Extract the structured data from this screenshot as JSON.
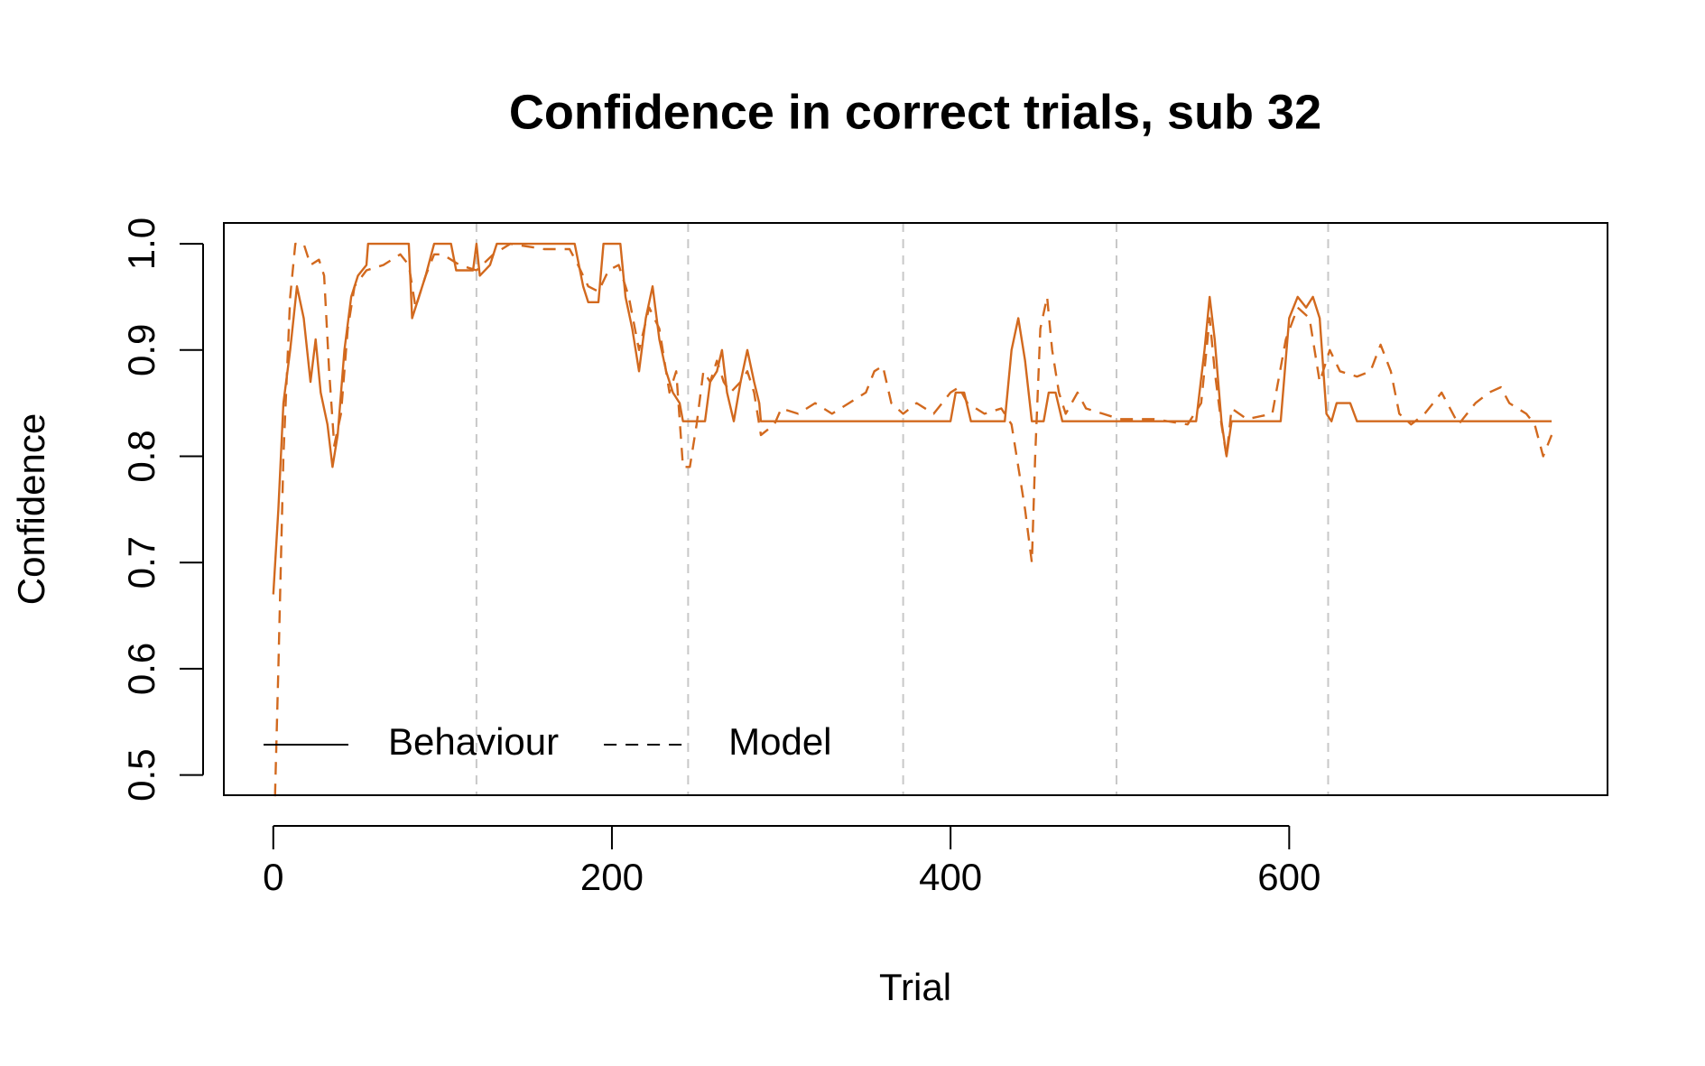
{
  "chart_data": {
    "type": "line",
    "title": "Confidence in correct trials, sub 32",
    "xlabel": "Trial",
    "ylabel": "Confidence",
    "xlim": [
      -29.2,
      788
    ],
    "ylim": [
      0.481,
      1.0196
    ],
    "xticks": [
      0,
      200,
      400,
      600
    ],
    "yticks": [
      0.5,
      0.6,
      0.7,
      0.8,
      0.9,
      {
        "value": 1,
        "label": "1.0"
      }
    ],
    "vlines": [
      120,
      245,
      372,
      498,
      623
    ],
    "legend": "bottom-left",
    "series": [
      {
        "name": "Behaviour",
        "color": "#d2691e",
        "linestyle": "solid",
        "x": [
          0,
          3,
          6,
          10,
          14,
          18,
          22,
          25,
          28,
          32,
          35,
          38,
          42,
          46,
          50,
          55,
          56,
          80,
          82,
          86,
          90,
          95,
          105,
          108,
          118,
          120,
          122,
          128,
          132,
          178,
          183,
          186,
          192,
          195,
          205,
          208,
          212,
          216,
          220,
          224,
          228,
          232,
          236,
          240,
          242,
          255,
          258,
          262,
          265,
          268,
          272,
          276,
          280,
          284,
          287,
          288,
          400,
          403,
          408,
          412,
          432,
          436,
          440,
          444,
          448,
          455,
          458,
          462,
          466,
          545,
          550,
          553,
          556,
          560,
          563,
          566,
          595,
          600,
          605,
          610,
          614,
          618,
          622,
          625,
          628,
          636,
          640,
          755
        ],
        "values": [
          0.67,
          0.75,
          0.85,
          0.9,
          0.96,
          0.93,
          0.87,
          0.91,
          0.86,
          0.83,
          0.79,
          0.82,
          0.9,
          0.95,
          0.97,
          0.98,
          1.0,
          1.0,
          0.93,
          0.95,
          0.97,
          1.0,
          1.0,
          0.975,
          0.975,
          1.0,
          0.97,
          0.98,
          1.0,
          1.0,
          0.96,
          0.945,
          0.945,
          1.0,
          1.0,
          0.95,
          0.92,
          0.88,
          0.93,
          0.96,
          0.91,
          0.88,
          0.86,
          0.85,
          0.833,
          0.833,
          0.87,
          0.88,
          0.9,
          0.86,
          0.833,
          0.87,
          0.9,
          0.87,
          0.85,
          0.833,
          0.833,
          0.86,
          0.86,
          0.833,
          0.833,
          0.9,
          0.93,
          0.89,
          0.833,
          0.833,
          0.86,
          0.86,
          0.833,
          0.833,
          0.9,
          0.95,
          0.91,
          0.833,
          0.8,
          0.833,
          0.833,
          0.93,
          0.95,
          0.94,
          0.95,
          0.93,
          0.84,
          0.833,
          0.85,
          0.85,
          0.833,
          0.833
        ]
      },
      {
        "name": "Model",
        "color": "#d2691e",
        "linestyle": "dashed",
        "x": [
          1,
          3,
          6,
          10,
          13,
          18,
          22,
          27,
          30,
          33,
          36,
          40,
          44,
          48,
          55,
          65,
          75,
          80,
          84,
          90,
          95,
          100,
          110,
          120,
          130,
          140,
          160,
          175,
          180,
          186,
          192,
          198,
          204,
          210,
          216,
          222,
          228,
          234,
          238,
          242,
          246,
          250,
          254,
          258,
          262,
          266,
          270,
          276,
          280,
          284,
          288,
          292,
          296,
          300,
          310,
          320,
          330,
          340,
          350,
          355,
          360,
          365,
          372,
          380,
          390,
          400,
          405,
          410,
          420,
          430,
          436,
          440,
          444,
          448,
          450,
          453,
          457,
          460,
          464,
          468,
          475,
          480,
          490,
          500,
          520,
          540,
          548,
          553,
          556,
          560,
          563,
          566,
          575,
          590,
          598,
          605,
          612,
          618,
          624,
          630,
          640,
          648,
          654,
          660,
          665,
          672,
          680,
          690,
          700,
          710,
          718,
          725,
          730,
          740,
          745,
          750,
          755
        ],
        "values": [
          0.48,
          0.6,
          0.8,
          0.95,
          1.0,
          1.0,
          0.98,
          0.985,
          0.97,
          0.88,
          0.81,
          0.84,
          0.92,
          0.96,
          0.975,
          0.98,
          0.99,
          0.98,
          0.94,
          0.97,
          0.99,
          0.99,
          0.98,
          0.975,
          0.99,
          1.0,
          0.995,
          0.995,
          0.98,
          0.96,
          0.955,
          0.975,
          0.98,
          0.95,
          0.9,
          0.94,
          0.92,
          0.86,
          0.88,
          0.79,
          0.79,
          0.83,
          0.88,
          0.87,
          0.89,
          0.87,
          0.86,
          0.87,
          0.88,
          0.86,
          0.82,
          0.825,
          0.83,
          0.845,
          0.84,
          0.85,
          0.84,
          0.85,
          0.86,
          0.88,
          0.885,
          0.85,
          0.84,
          0.85,
          0.84,
          0.86,
          0.865,
          0.85,
          0.84,
          0.845,
          0.83,
          0.79,
          0.75,
          0.7,
          0.8,
          0.92,
          0.95,
          0.9,
          0.86,
          0.84,
          0.86,
          0.845,
          0.84,
          0.835,
          0.835,
          0.83,
          0.85,
          0.93,
          0.88,
          0.83,
          0.8,
          0.845,
          0.835,
          0.84,
          0.91,
          0.94,
          0.93,
          0.87,
          0.9,
          0.88,
          0.875,
          0.88,
          0.905,
          0.88,
          0.84,
          0.83,
          0.84,
          0.86,
          0.83,
          0.85,
          0.86,
          0.865,
          0.85,
          0.84,
          0.83,
          0.8,
          0.82
        ]
      }
    ]
  }
}
